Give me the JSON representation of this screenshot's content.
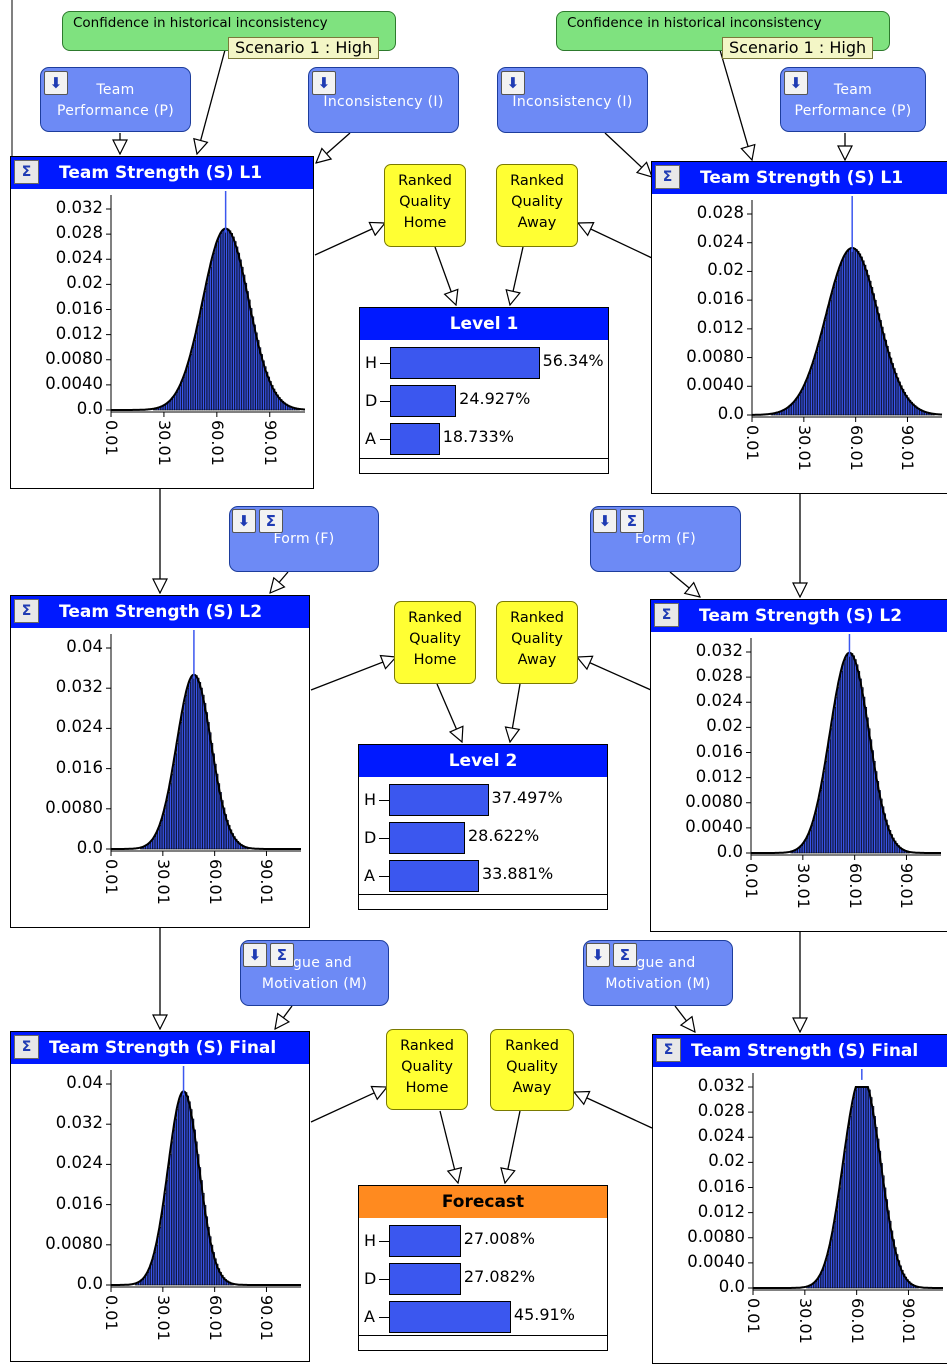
{
  "confidence": {
    "label": "Confidence in historical inconsistency",
    "scenario": "Scenario 1 : High"
  },
  "parent_nodes": {
    "team_performance": [
      "Team",
      "Performance (P)"
    ],
    "inconsistency": "Inconsistency (I)",
    "form": "Form (F)",
    "motivation": [
      "gue and",
      "Motivation (M)"
    ]
  },
  "icons": {
    "sigma": "Σ",
    "evidence": "⬇"
  },
  "ranked": {
    "home": [
      "Ranked",
      "Quality",
      "Home"
    ],
    "away": [
      "Ranked",
      "Quality",
      "Away"
    ]
  },
  "monitors": {
    "left_l1": {
      "title": "Team Strength (S) L1",
      "yticks": [
        "0.032",
        "0.028",
        "0.024",
        "0.02",
        "0.016",
        "0.012",
        "0.0080",
        "0.0040",
        "0.0"
      ],
      "ymax": 0.034,
      "mean": 65,
      "sd": 13
    },
    "right_l1": {
      "title": "Team Strength (S) L1",
      "yticks": [
        "0.028",
        "0.024",
        "0.02",
        "0.016",
        "0.012",
        "0.0080",
        "0.0040",
        "0.0"
      ],
      "ymax": 0.032,
      "mean": 58,
      "sd": 15
    },
    "left_l2": {
      "title": "Team Strength (S) L2",
      "yticks": [
        "0.04",
        "0.032",
        "0.024",
        "0.016",
        "0.0080",
        "0.0"
      ],
      "ymax": 0.046,
      "mean": 48,
      "sd": 10
    },
    "right_l2": {
      "title": "Team Strength (S) L2",
      "yticks": [
        "0.032",
        "0.028",
        "0.024",
        "0.02",
        "0.016",
        "0.012",
        "0.0080",
        "0.0040",
        "0.0"
      ],
      "ymax": 0.036,
      "mean": 57,
      "sd": 13,
      "bimodal": true
    },
    "left_final": {
      "title": "Team Strength (S) Final",
      "yticks": [
        "0.04",
        "0.032",
        "0.024",
        "0.016",
        "0.0080",
        "0.0"
      ],
      "ymax": 0.046,
      "mean": 42,
      "sd": 9
    },
    "right_final": {
      "title": "Team Strength (S) Final",
      "yticks": [
        "0.032",
        "0.028",
        "0.024",
        "0.02",
        "0.016",
        "0.012",
        "0.0080",
        "0.0040",
        "0.0"
      ],
      "ymax": 0.036,
      "mean": 63,
      "sd": 12,
      "bimodal": true
    },
    "xticks": [
      "0.01",
      "30.01",
      "60.01",
      "90.01"
    ]
  },
  "levels": {
    "level1": {
      "title": "Level 1",
      "states": [
        {
          "label": "H",
          "value": 56.34,
          "text": "56.34%"
        },
        {
          "label": "D",
          "value": 24.927,
          "text": "24.927%"
        },
        {
          "label": "A",
          "value": 18.733,
          "text": "18.733%"
        }
      ]
    },
    "level2": {
      "title": "Level 2",
      "states": [
        {
          "label": "H",
          "value": 37.497,
          "text": "37.497%"
        },
        {
          "label": "D",
          "value": 28.622,
          "text": "28.622%"
        },
        {
          "label": "A",
          "value": 33.881,
          "text": "33.881%"
        }
      ]
    },
    "forecast": {
      "title": "Forecast",
      "states": [
        {
          "label": "H",
          "value": 27.008,
          "text": "27.008%"
        },
        {
          "label": "D",
          "value": 27.082,
          "text": "27.082%"
        },
        {
          "label": "A",
          "value": 45.91,
          "text": "45.91%"
        }
      ]
    }
  },
  "colors": {
    "monitor_header": "#0019ff",
    "forecast_header": "#ff8a1f",
    "bar_fill": "#3b57ef",
    "ranked_fill": "#ffff33",
    "parent_fill": "#6d8af5",
    "confidence_fill": "#7fe27f"
  }
}
